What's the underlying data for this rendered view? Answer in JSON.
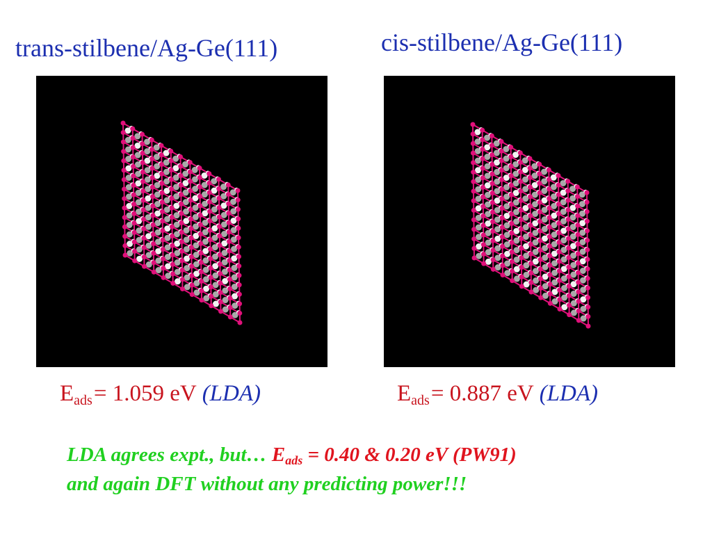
{
  "panels": [
    {
      "title": "trans-stilbene/Ag-Ge(111)",
      "energy": {
        "symbol": "E",
        "subscript": "ads",
        "value": "= 1.059 eV",
        "method": "(LDA)"
      }
    },
    {
      "title": "cis-stilbene/Ag-Ge(111)",
      "energy": {
        "symbol": "E",
        "subscript": "ads",
        "value": "= 0.887 eV",
        "method": "(LDA)"
      }
    }
  ],
  "note": {
    "line1": {
      "lead": "LDA agrees expt., but…",
      "symbol": "E",
      "subscript": "ads",
      "rest": "= 0.40 & 0.20 eV (PW91)"
    },
    "line2": "and again DFT without any predicting power!!!"
  }
}
